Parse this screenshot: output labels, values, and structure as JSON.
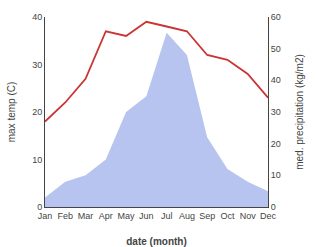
{
  "chart_data": {
    "type": "line",
    "categories": [
      "Jan",
      "Feb",
      "Mar",
      "Apr",
      "May",
      "Jun",
      "Jul",
      "Aug",
      "Sep",
      "Oct",
      "Nov",
      "Dec"
    ],
    "series": [
      {
        "type": "line",
        "color": "#cc3333",
        "values": [
          18,
          22,
          27,
          37,
          36,
          39,
          38,
          37,
          32,
          31,
          28,
          23
        ]
      },
      {
        "type": "area",
        "color": "#b8c4f0",
        "axis": "y2",
        "values": [
          3,
          8,
          10,
          15,
          30,
          35,
          55,
          48,
          22,
          12,
          8,
          5
        ]
      }
    ],
    "xlabel": "date (month)",
    "ylabel": "max temp (C)",
    "y2label": "med. precipitation (kg/m2)",
    "ylim": [
      0,
      40
    ],
    "yticks": [
      0,
      10,
      20,
      30,
      40
    ],
    "y2lim": [
      0,
      60
    ],
    "y2ticks": [
      0,
      10,
      20,
      30,
      40,
      50,
      60
    ],
    "grid": false
  }
}
